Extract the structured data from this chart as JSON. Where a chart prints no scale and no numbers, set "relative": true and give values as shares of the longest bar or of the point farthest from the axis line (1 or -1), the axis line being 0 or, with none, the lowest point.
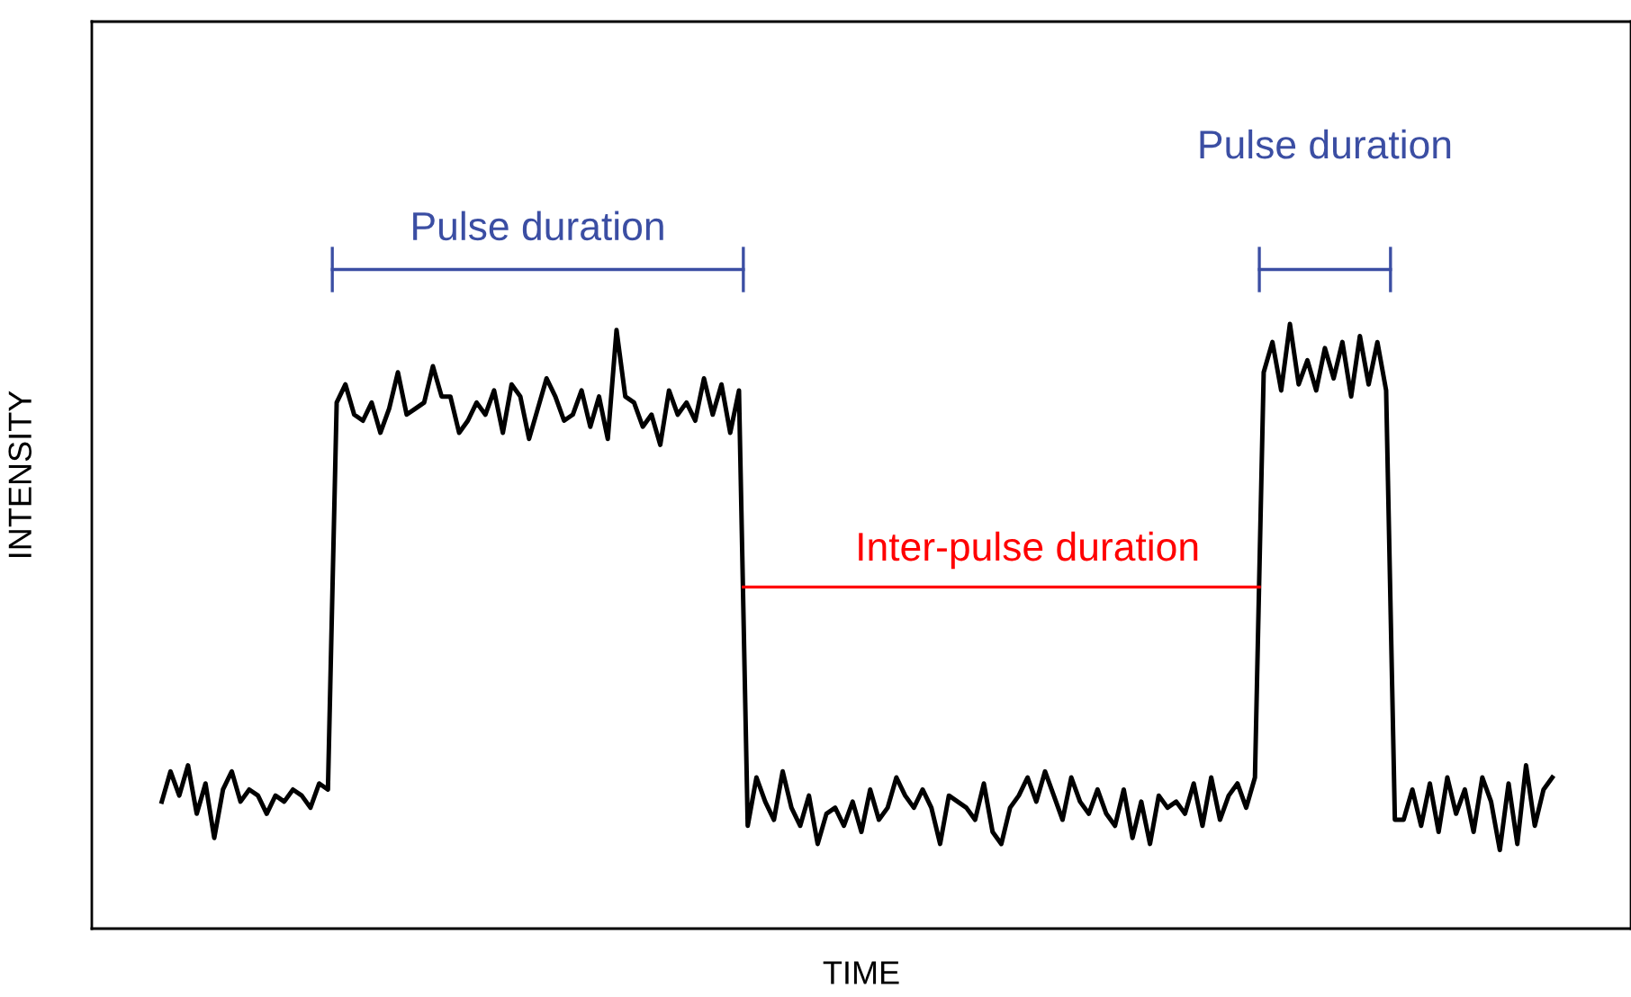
{
  "chart_data": {
    "type": "line",
    "relative": true,
    "xlabel": "TIME",
    "ylabel": "INTENSITY",
    "categories": [
      null,
      null,
      null,
      null,
      null,
      null,
      null,
      null,
      null,
      null,
      null,
      null,
      null,
      null,
      null,
      null,
      null,
      null,
      null,
      null,
      null,
      null,
      null,
      null,
      null,
      null,
      null,
      null,
      null,
      null,
      null,
      null,
      null,
      null,
      null,
      null,
      null,
      null,
      null,
      null,
      null,
      null,
      null,
      null,
      null,
      null,
      null,
      null,
      null,
      null,
      null,
      null,
      null,
      null,
      null,
      null,
      null,
      null,
      null,
      null,
      null,
      null,
      null,
      null,
      null,
      null,
      null,
      null,
      null,
      null,
      null,
      null,
      null,
      null,
      null,
      null,
      null,
      null,
      null,
      null,
      null,
      null,
      null,
      null,
      null,
      null,
      null,
      null,
      null,
      null,
      null,
      null,
      null,
      null,
      null,
      null,
      null,
      null,
      null,
      null,
      null,
      null,
      null,
      null,
      null,
      null,
      null,
      null,
      null,
      null,
      null,
      null,
      null,
      null,
      null,
      null,
      null,
      null,
      null,
      null,
      null,
      null,
      null,
      null,
      null,
      null,
      null,
      null,
      null,
      null,
      null,
      null,
      null,
      null,
      null,
      null,
      null,
      null,
      null,
      null,
      null,
      null,
      null,
      null,
      null,
      null,
      null,
      null,
      null,
      null,
      null,
      null,
      null,
      null,
      null,
      null,
      null,
      null,
      null,
      null
    ],
    "series": [
      {
        "color": "#000000",
        "values": [
          0.21,
          0.26,
          0.22,
          0.27,
          0.19,
          0.24,
          0.15,
          0.23,
          0.26,
          0.21,
          0.23,
          0.22,
          0.19,
          0.22,
          0.21,
          0.23,
          0.22,
          0.2,
          0.24,
          0.23,
          0.87,
          0.9,
          0.85,
          0.84,
          0.87,
          0.82,
          0.86,
          0.92,
          0.85,
          0.86,
          0.87,
          0.93,
          0.88,
          0.88,
          0.82,
          0.84,
          0.87,
          0.85,
          0.89,
          0.82,
          0.9,
          0.88,
          0.81,
          0.86,
          0.91,
          0.88,
          0.84,
          0.85,
          0.89,
          0.83,
          0.88,
          0.81,
          0.99,
          0.88,
          0.87,
          0.83,
          0.85,
          0.8,
          0.89,
          0.85,
          0.87,
          0.84,
          0.91,
          0.85,
          0.9,
          0.82,
          0.89,
          0.17,
          0.25,
          0.21,
          0.18,
          0.26,
          0.2,
          0.17,
          0.22,
          0.14,
          0.19,
          0.2,
          0.17,
          0.21,
          0.16,
          0.23,
          0.18,
          0.2,
          0.25,
          0.22,
          0.2,
          0.23,
          0.2,
          0.14,
          0.22,
          0.21,
          0.2,
          0.18,
          0.24,
          0.16,
          0.14,
          0.2,
          0.22,
          0.25,
          0.21,
          0.26,
          0.22,
          0.18,
          0.25,
          0.21,
          0.19,
          0.23,
          0.19,
          0.17,
          0.23,
          0.15,
          0.21,
          0.14,
          0.22,
          0.2,
          0.21,
          0.19,
          0.24,
          0.17,
          0.25,
          0.18,
          0.22,
          0.24,
          0.2,
          0.25,
          0.92,
          0.97,
          0.89,
          1.0,
          0.9,
          0.94,
          0.89,
          0.96,
          0.91,
          0.97,
          0.88,
          0.98,
          0.9,
          0.97,
          0.89,
          0.18,
          0.18,
          0.23,
          0.17,
          0.24,
          0.16,
          0.25,
          0.19,
          0.23,
          0.16,
          0.25,
          0.21,
          0.13,
          0.24,
          0.14,
          0.27,
          0.17,
          0.23,
          0.25
        ]
      }
    ],
    "annotations": [
      "Pulse duration",
      "Inter-pulse duration",
      "Pulse duration"
    ],
    "grid": false,
    "legend": false
  }
}
